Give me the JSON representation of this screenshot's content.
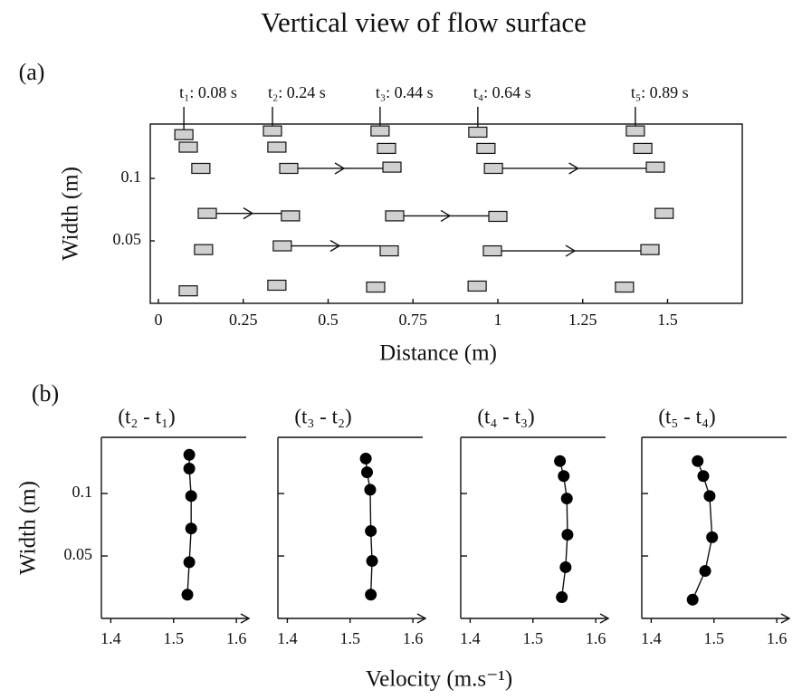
{
  "title": "Vertical view of flow surface",
  "panels": [
    "(a)",
    "(b)"
  ],
  "shared_xlabel": "Velocity (m.s⁻¹)",
  "chart_data": [
    {
      "type": "scatter",
      "xlabel": "Distance (m)",
      "ylabel": "Width (m)",
      "xlim": [
        -0.024,
        1.72
      ],
      "ylim": [
        0,
        0.1435
      ],
      "xticks": [
        0,
        0.25,
        0.5,
        0.75,
        1,
        1.25,
        1.5
      ],
      "yticks": [
        0.05,
        0.1
      ],
      "color": "#d0d0d0",
      "series": [
        {
          "name": "t₁: 0.08 s",
          "x": [
            0.075,
            0.088,
            0.125,
            0.144,
            0.133,
            0.088
          ],
          "y": [
            0.135,
            0.125,
            0.108,
            0.072,
            0.043,
            0.01
          ]
        },
        {
          "name": "t₂: 0.24 s",
          "x": [
            0.336,
            0.349,
            0.384,
            0.389,
            0.365,
            0.349
          ],
          "y": [
            0.138,
            0.125,
            0.108,
            0.07,
            0.046,
            0.0145
          ]
        },
        {
          "name": "t₃: 0.44 s",
          "x": [
            0.653,
            0.672,
            0.688,
            0.696,
            0.68,
            0.64
          ],
          "y": [
            0.138,
            0.124,
            0.109,
            0.07,
            0.042,
            0.013
          ]
        },
        {
          "name": "t₄: 0.64 s",
          "x": [
            0.941,
            0.965,
            0.987,
            1.0,
            0.984,
            0.939
          ],
          "y": [
            0.137,
            0.124,
            0.108,
            0.0696,
            0.042,
            0.0138
          ]
        },
        {
          "name": "t₅: 0.89 s",
          "x": [
            1.405,
            1.427,
            1.464,
            1.49,
            1.448,
            1.373
          ],
          "y": [
            0.138,
            0.124,
            0.109,
            0.072,
            0.043,
            0.013
          ]
        }
      ]
    },
    {
      "type": "line",
      "title": "(t₂ - t₁)",
      "ylabel": "Width (m)",
      "xlim": [
        1.385,
        1.62
      ],
      "ylim": [
        0,
        0.145
      ],
      "xticks": [
        1.4,
        1.5,
        1.6
      ],
      "yticks": [
        0.05,
        0.1
      ],
      "color": "#000000",
      "x": [
        1.525,
        1.525,
        1.528,
        1.528,
        1.525,
        1.522
      ],
      "y": [
        0.131,
        0.12,
        0.098,
        0.072,
        0.045,
        0.019
      ]
    },
    {
      "type": "line",
      "title": "(t₃ - t₂)",
      "xlim": [
        1.385,
        1.62
      ],
      "ylim": [
        0,
        0.145
      ],
      "xticks": [
        1.4,
        1.5,
        1.6
      ],
      "yticks": [
        0.05,
        0.1
      ],
      "color": "#000000",
      "x": [
        1.525,
        1.527,
        1.532,
        1.533,
        1.535,
        1.533
      ],
      "y": [
        0.128,
        0.117,
        0.103,
        0.07,
        0.046,
        0.019
      ]
    },
    {
      "type": "line",
      "title": "(t₄ - t₃)",
      "xlim": [
        1.385,
        1.62
      ],
      "ylim": [
        0,
        0.145
      ],
      "xticks": [
        1.4,
        1.5,
        1.6
      ],
      "yticks": [
        0.05,
        0.1
      ],
      "color": "#000000",
      "x": [
        1.543,
        1.549,
        1.554,
        1.555,
        1.552,
        1.546
      ],
      "y": [
        0.126,
        0.114,
        0.096,
        0.067,
        0.041,
        0.017
      ]
    },
    {
      "type": "line",
      "title": "(t₅ - t₄)",
      "xlim": [
        1.385,
        1.62
      ],
      "ylim": [
        0,
        0.145
      ],
      "xticks": [
        1.4,
        1.5,
        1.6
      ],
      "yticks": [
        0.05,
        0.1
      ],
      "color": "#000000",
      "x": [
        1.474,
        1.483,
        1.493,
        1.497,
        1.486,
        1.466
      ],
      "y": [
        0.126,
        0.114,
        0.098,
        0.065,
        0.038,
        0.015
      ]
    }
  ]
}
